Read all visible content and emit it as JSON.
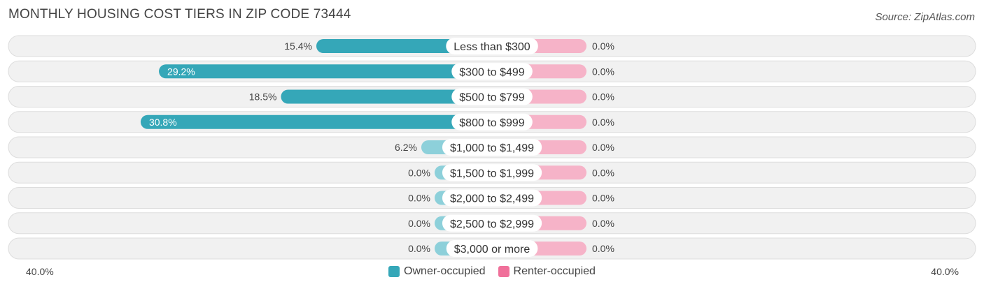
{
  "title": "MONTHLY HOUSING COST TIERS IN ZIP CODE 73444",
  "source": "Source: ZipAtlas.com",
  "colors": {
    "owner": "#35a7b8",
    "owner_light": "#8dd0da",
    "renter": "#f0709a",
    "renter_light": "#f6b3c8",
    "row_bg": "#f1f1f1",
    "row_border": "#dddddd"
  },
  "axis": {
    "left_label": "40.0%",
    "right_label": "40.0%"
  },
  "legend": {
    "owner_label": "Owner-occupied",
    "renter_label": "Renter-occupied"
  },
  "chart_data": {
    "type": "bar",
    "orientation": "horizontal-diverging",
    "categories": [
      "Less than $300",
      "$300 to $499",
      "$500 to $799",
      "$800 to $999",
      "$1,000 to $1,499",
      "$1,500 to $1,999",
      "$2,000 to $2,499",
      "$2,500 to $2,999",
      "$3,000 or more"
    ],
    "series": [
      {
        "name": "Owner-occupied",
        "values": [
          15.4,
          29.2,
          18.5,
          30.8,
          6.2,
          0.0,
          0.0,
          0.0,
          0.0
        ],
        "labels": [
          "15.4%",
          "29.2%",
          "18.5%",
          "30.8%",
          "6.2%",
          "0.0%",
          "0.0%",
          "0.0%",
          "0.0%"
        ]
      },
      {
        "name": "Renter-occupied",
        "values": [
          0.0,
          0.0,
          0.0,
          0.0,
          0.0,
          0.0,
          0.0,
          0.0,
          0.0
        ],
        "labels": [
          "0.0%",
          "0.0%",
          "0.0%",
          "0.0%",
          "0.0%",
          "0.0%",
          "0.0%",
          "0.0%",
          "0.0%"
        ]
      }
    ],
    "xlim": [
      -40,
      40
    ],
    "legend_position": "bottom-center"
  }
}
